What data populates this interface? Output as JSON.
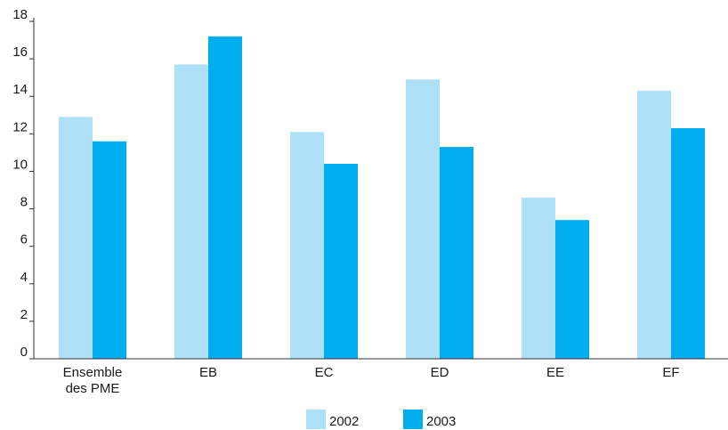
{
  "chart_data": {
    "type": "bar",
    "title": "",
    "xlabel": "",
    "ylabel": "",
    "ylim": [
      0,
      18
    ],
    "yticks": [
      "0",
      "2",
      "4",
      "6",
      "8",
      "10",
      "12",
      "14",
      "16",
      "18"
    ],
    "categories": [
      [
        "Ensemble",
        "des PME"
      ],
      [
        "EB"
      ],
      [
        "EC"
      ],
      [
        "ED"
      ],
      [
        "EE"
      ],
      [
        "EF"
      ]
    ],
    "series": [
      {
        "name": "2002",
        "color": "#aee0f7",
        "values": [
          12.9,
          15.7,
          12.1,
          14.9,
          8.6,
          14.3
        ]
      },
      {
        "name": "2003",
        "color": "#00aeef",
        "values": [
          11.6,
          17.2,
          10.4,
          11.3,
          7.4,
          12.3
        ]
      }
    ],
    "grid": false,
    "legend_position": "bottom-center"
  }
}
